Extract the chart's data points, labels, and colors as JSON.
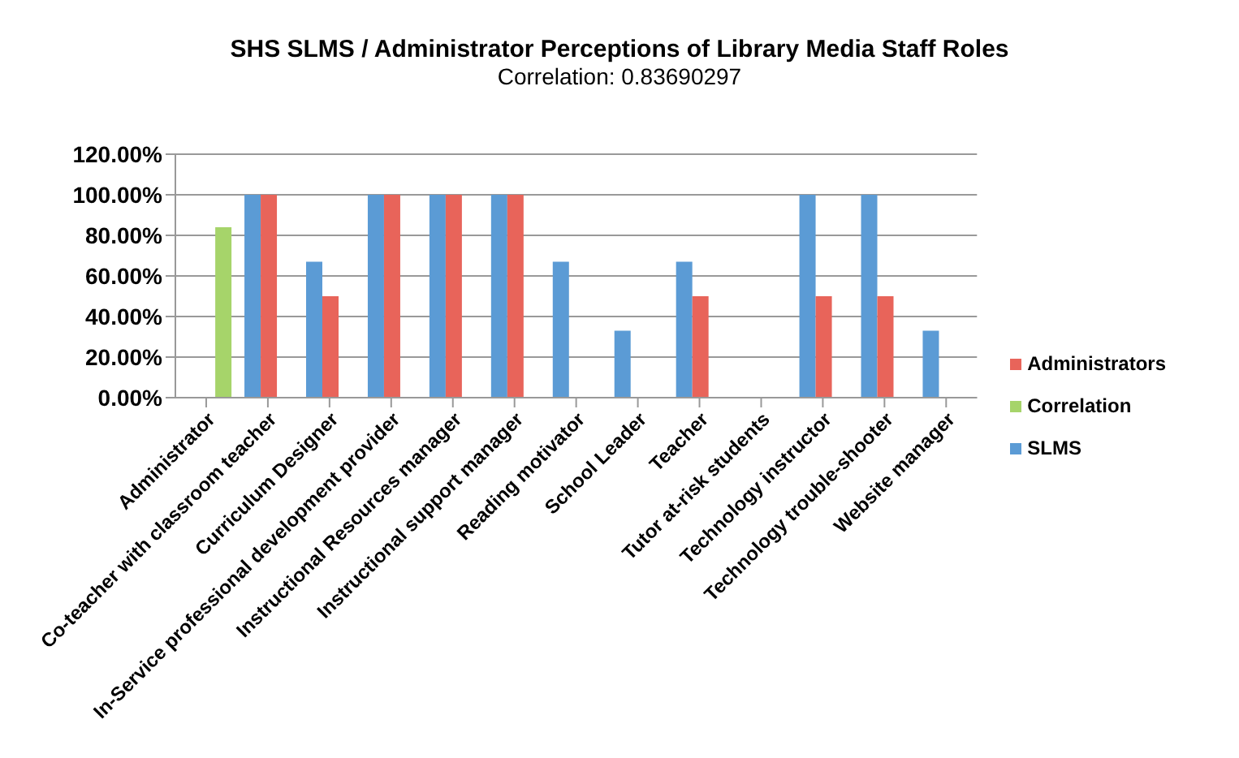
{
  "chart_data": {
    "type": "bar",
    "title": "SHS SLMS / Administrator Perceptions of Library Media Staff Roles",
    "subtitle": "Correlation: 0.83690297",
    "categories": [
      "Administrator",
      "Co-teacher with classroom teacher",
      "Curriculum Designer",
      "In-Service professional development provider",
      "Instructional Resources manager",
      "Instructional support manager",
      "Reading motivator",
      "School Leader",
      "Teacher",
      "Tutor at-risk students",
      "Technology instructor",
      "Technology trouble-shooter",
      "Website manager"
    ],
    "series": [
      {
        "name": "SLMS",
        "color": "#5b9bd5",
        "values": [
          null,
          100,
          67,
          100,
          100,
          100,
          67,
          33,
          67,
          null,
          100,
          100,
          33
        ]
      },
      {
        "name": "Administrators",
        "color": "#e8645a",
        "values": [
          null,
          100,
          50,
          100,
          100,
          100,
          null,
          null,
          50,
          null,
          50,
          50,
          null
        ]
      },
      {
        "name": "Correlation",
        "color": "#a6d46a",
        "values": [
          84,
          null,
          null,
          null,
          null,
          null,
          null,
          null,
          null,
          null,
          null,
          null,
          null
        ]
      }
    ],
    "ylim": [
      0,
      120
    ],
    "yticks": [
      {
        "value": 0,
        "label": "0.00%"
      },
      {
        "value": 20,
        "label": "20.00%"
      },
      {
        "value": 40,
        "label": "40.00%"
      },
      {
        "value": 60,
        "label": "60.00%"
      },
      {
        "value": 80,
        "label": "80.00%"
      },
      {
        "value": 100,
        "label": "100.00%"
      },
      {
        "value": 120,
        "label": "120.00%"
      }
    ],
    "grid": "y",
    "legend": "right"
  }
}
